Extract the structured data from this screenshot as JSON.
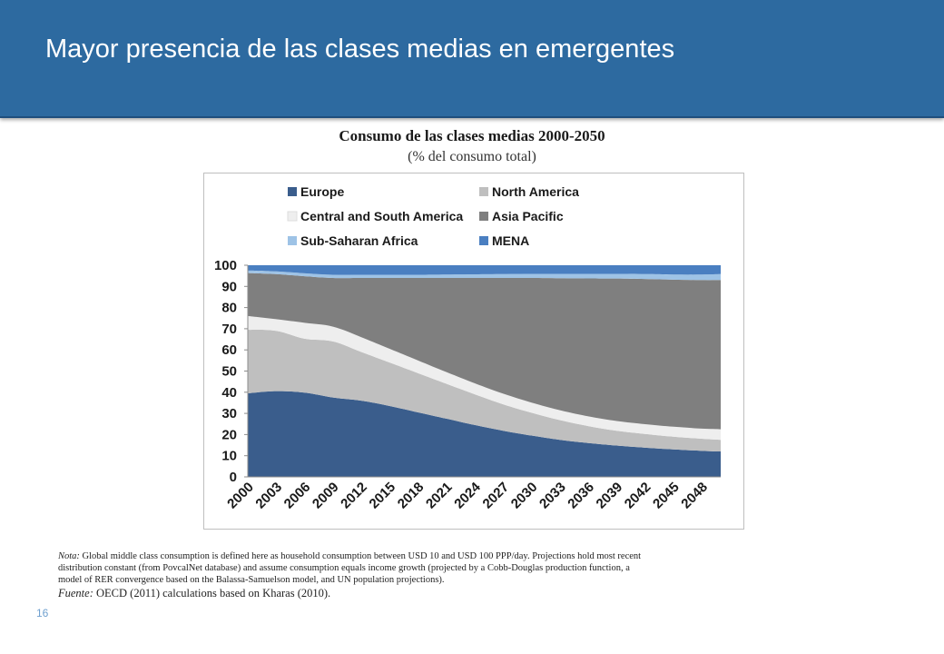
{
  "header": {
    "title": "Mayor presencia de las clases medias en emergentes"
  },
  "chart_data": {
    "type": "area",
    "stacked": true,
    "title": "Consumo de las clases medias 2000-2050",
    "subtitle": "(% del consumo total)",
    "x": [
      2000,
      2003,
      2006,
      2009,
      2012,
      2015,
      2018,
      2021,
      2024,
      2027,
      2030,
      2033,
      2036,
      2039,
      2042,
      2045,
      2048,
      2050
    ],
    "x_tick_labels": [
      "2000",
      "2003",
      "2006",
      "2009",
      "2012",
      "2015",
      "2018",
      "2021",
      "2024",
      "2027",
      "2030",
      "2033",
      "2036",
      "2039",
      "2042",
      "2045",
      "2048"
    ],
    "ylim": [
      0,
      100
    ],
    "y_ticks": [
      0,
      10,
      20,
      30,
      40,
      50,
      60,
      70,
      80,
      90,
      100
    ],
    "legend_position": "top",
    "series": [
      {
        "name": "Europe",
        "color": "#3a5d8c",
        "values": [
          39.5,
          40.5,
          39.8,
          37.5,
          36.0,
          33.5,
          30.5,
          27.5,
          24.5,
          21.8,
          19.5,
          17.5,
          16.0,
          14.8,
          13.8,
          13.0,
          12.3,
          12.0
        ]
      },
      {
        "name": "North America",
        "color": "#bfbfbf",
        "values": [
          30.0,
          28.5,
          25.5,
          26.5,
          23.0,
          20.5,
          18.5,
          16.5,
          14.5,
          12.5,
          10.8,
          9.3,
          8.0,
          7.0,
          6.5,
          6.0,
          5.7,
          5.5
        ]
      },
      {
        "name": "Central and South America",
        "color": "#eeeeee",
        "values": [
          6.5,
          5.5,
          7.5,
          7.0,
          7.0,
          6.5,
          6.0,
          5.5,
          5.2,
          5.0,
          4.8,
          4.7,
          4.6,
          4.6,
          4.6,
          4.7,
          4.8,
          5.0
        ]
      },
      {
        "name": "Asia Pacific",
        "color": "#7f7f7f",
        "values": [
          20.3,
          21.3,
          22.0,
          23.0,
          28.0,
          33.5,
          39.0,
          44.5,
          49.8,
          54.7,
          58.9,
          62.4,
          65.2,
          67.3,
          68.6,
          69.5,
          70.2,
          70.5
        ]
      },
      {
        "name": "Sub-Saharan Africa",
        "color": "#9ec3e6",
        "values": [
          1.2,
          1.3,
          1.4,
          1.5,
          1.5,
          1.5,
          1.5,
          1.6,
          1.7,
          1.8,
          1.9,
          2.0,
          2.1,
          2.2,
          2.3,
          2.4,
          2.6,
          2.8
        ]
      },
      {
        "name": "MENA",
        "color": "#4a7fc1",
        "values": [
          2.5,
          2.9,
          3.8,
          4.5,
          4.5,
          4.5,
          4.5,
          4.4,
          4.3,
          4.2,
          4.1,
          4.1,
          4.1,
          4.1,
          4.2,
          4.4,
          4.4,
          4.2
        ]
      }
    ]
  },
  "notes": {
    "nota_label": "Nota:",
    "nota_line1": "Global middle class consumption is defined here as household consumption between USD 10 and USD 100 PPP/day. Projections hold most recent",
    "nota_line2": "distribution constant (from PovcalNet database) and assume consumption equals income growth (projected by a Cobb-Douglas production function, a",
    "nota_line3": "model of RER convergence based on the Balassa-Samuelson model, and UN population projections).",
    "fuente_label": "Fuente:",
    "fuente_text": "OECD (2011) calculations based on Kharas (2010)."
  },
  "page_number": "16"
}
